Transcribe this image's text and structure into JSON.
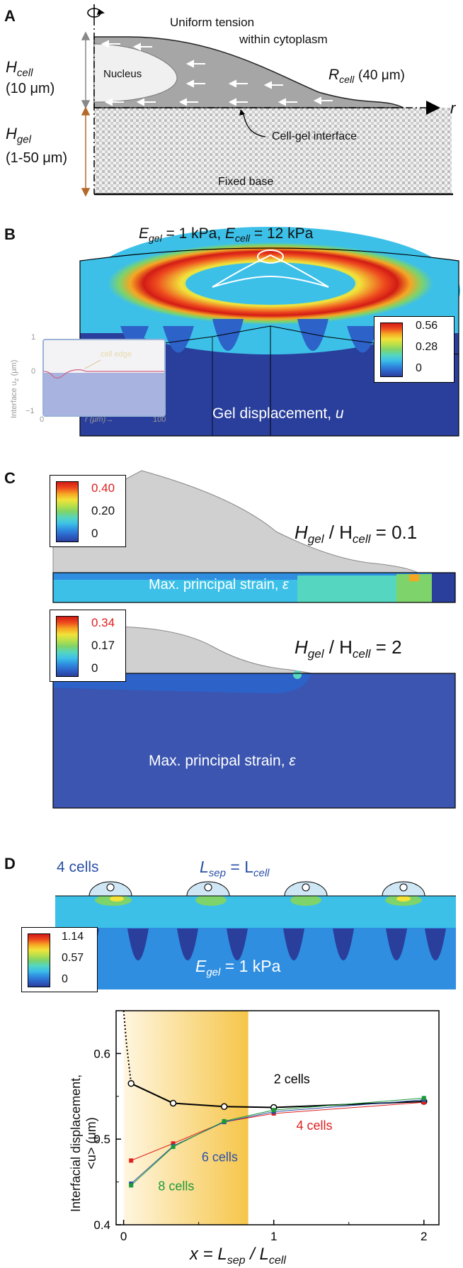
{
  "panel_a": {
    "letter": "A",
    "h_cell_label": "H",
    "h_cell_sub": "cell",
    "h_cell_value": "(10 μm)",
    "h_gel_label": "H",
    "h_gel_sub": "gel",
    "h_gel_value": "(1-50 μm)",
    "tension_line1": "Uniform tension",
    "tension_line2": "within cytoplasm",
    "nucleus": "Nucleus",
    "r_cell_label": "R",
    "r_cell_sub": "cell",
    "r_cell_value": "(40 μm)",
    "r_axis": "r",
    "interface": "Cell-gel interface",
    "fixed_base": "Fixed base"
  },
  "panel_b": {
    "letter": "B",
    "title_e_gel": "E",
    "title_e_gel_sub": "gel",
    "title_e_gel_val": " = 1 kPa, ",
    "title_e_cell": "E",
    "title_e_cell_sub": "cell",
    "title_e_cell_val": " = 12 kPa",
    "colorbar_max": "0.56",
    "colorbar_mid": "0.28",
    "colorbar_min": "0",
    "gel_label": "Gel displacement, ",
    "gel_var": "u",
    "inset_ylabel": "Interface u",
    "inset_ylabel_sub": "z",
    "inset_ylabel_unit": " (μm)",
    "inset_y_ticks": [
      "1",
      "0",
      "−1"
    ],
    "inset_x_ticks": [
      "0",
      "100"
    ],
    "inset_x_label": "r (μm)→",
    "inset_annotation": "cell edge"
  },
  "panel_c": {
    "letter": "C",
    "top_cb_max": "0.40",
    "top_cb_mid": "0.20",
    "top_cb_min": "0",
    "top_ratio_a": "H",
    "top_ratio_a_sub": "gel",
    "top_ratio_b": " / H",
    "top_ratio_b_sub": "cell",
    "top_ratio_val": " = 0.1",
    "top_strain_label": "Max. principal strain, ",
    "top_strain_var": "ε",
    "bot_cb_max": "0.34",
    "bot_cb_mid": "0.17",
    "bot_cb_min": "0",
    "bot_ratio_a": "H",
    "bot_ratio_a_sub": "gel",
    "bot_ratio_b": " / H",
    "bot_ratio_b_sub": "cell",
    "bot_ratio_val": " = 2",
    "bot_strain_label": "Max. principal strain, ",
    "bot_strain_var": "ε"
  },
  "panel_d": {
    "letter": "D",
    "cells_label": "4 cells",
    "lsep_a": "L",
    "lsep_a_sub": "sep",
    "lsep_eq": " = L",
    "lsep_b_sub": "cell",
    "egel": "E",
    "egel_sub": "gel",
    "egel_val": " = 1 kPa",
    "cb_max": "1.14",
    "cb_mid": "0.57",
    "cb_min": "0"
  },
  "chart_data": {
    "type": "line",
    "ylabel_line1": "Interfacial displacement,",
    "ylabel_line2": "<u> (μm)",
    "xlabel_x": "x",
    "xlabel_eq": " = L",
    "xlabel_sep": "sep",
    "xlabel_slash": " / L",
    "xlabel_cell": "cell",
    "xlim": [
      -0.05,
      2.1
    ],
    "ylim": [
      0.4,
      0.65
    ],
    "x_ticks": [
      "0",
      "1",
      "2"
    ],
    "y_ticks": [
      "0.4",
      "0.5",
      "0.6"
    ],
    "shaded_region": [
      0,
      0.83
    ],
    "series": [
      {
        "name": "2 cells",
        "color": "#000000",
        "x": [
          0.05,
          0.33,
          0.67,
          1.0,
          2.0
        ],
        "y": [
          0.565,
          0.542,
          0.538,
          0.537,
          0.544
        ]
      },
      {
        "name": "4 cells",
        "color": "#e02020",
        "x": [
          0.05,
          0.33,
          0.67,
          1.0,
          2.0
        ],
        "y": [
          0.475,
          0.495,
          0.52,
          0.53,
          0.543
        ]
      },
      {
        "name": "6 cells",
        "color": "#2a4fa8",
        "x": [
          0.05,
          0.33,
          0.67,
          1.0,
          2.0
        ],
        "y": [
          0.448,
          0.492,
          0.52,
          0.532,
          0.546
        ]
      },
      {
        "name": "8 cells",
        "color": "#1e9a3a",
        "x": [
          0.05,
          0.33,
          0.67,
          1.0,
          2.0
        ],
        "y": [
          0.446,
          0.491,
          0.521,
          0.534,
          0.548
        ]
      }
    ],
    "limit_curve": {
      "x": [
        0.0,
        0.02,
        0.05
      ],
      "y": [
        0.65,
        0.61,
        0.565
      ]
    }
  },
  "colors": {
    "jet": [
      "#2a3f9c",
      "#2d62c8",
      "#2f8ee0",
      "#3cc0e8",
      "#55d6c0",
      "#7ed36a",
      "#b9e04a",
      "#f2e23a",
      "#f6a623",
      "#ee4a1e",
      "#d21b16"
    ],
    "gel_base": "#3b55b0",
    "cell_gray": "#cccccc"
  }
}
